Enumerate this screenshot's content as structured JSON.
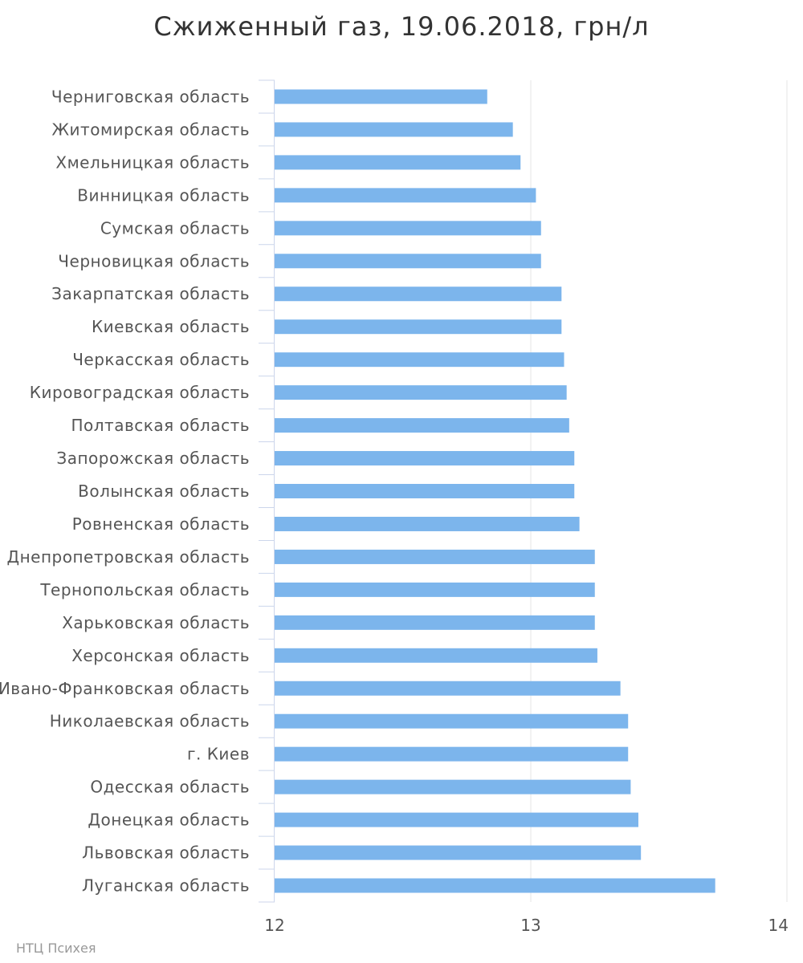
{
  "chart_data": {
    "type": "bar",
    "orientation": "horizontal",
    "title": "Сжиженный газ, 19.06.2018, грн/л",
    "categories": [
      "Черниговская область",
      "Житомирская область",
      "Хмельницкая область",
      "Винницкая область",
      "Сумская область",
      "Черновицкая область",
      "Закарпатская область",
      "Киевская область",
      "Черкасская область",
      "Кировоградская область",
      "Полтавская область",
      "Запорожская область",
      "Волынская область",
      "Ровненская область",
      "Днепропетровская область",
      "Тернопольская область",
      "Харьковская область",
      "Херсонская область",
      "Ивано-Франковская область",
      "Николаевская область",
      "г. Киев",
      "Одесская область",
      "Донецкая область",
      "Львовская область",
      "Луганская область"
    ],
    "values": [
      12.83,
      12.93,
      12.96,
      13.02,
      13.04,
      13.04,
      13.12,
      13.12,
      13.13,
      13.14,
      13.15,
      13.17,
      13.17,
      13.19,
      13.25,
      13.25,
      13.25,
      13.26,
      13.35,
      13.38,
      13.38,
      13.39,
      13.42,
      13.43,
      13.72
    ],
    "xlim": [
      12,
      14
    ],
    "xticks": [
      "12",
      "13",
      "14"
    ],
    "grid": true,
    "bar_color": "#7cb5ec",
    "grid_color": "#e6e6e6",
    "axis_color": "#ccd6eb"
  },
  "credit": "НТЦ Психея"
}
